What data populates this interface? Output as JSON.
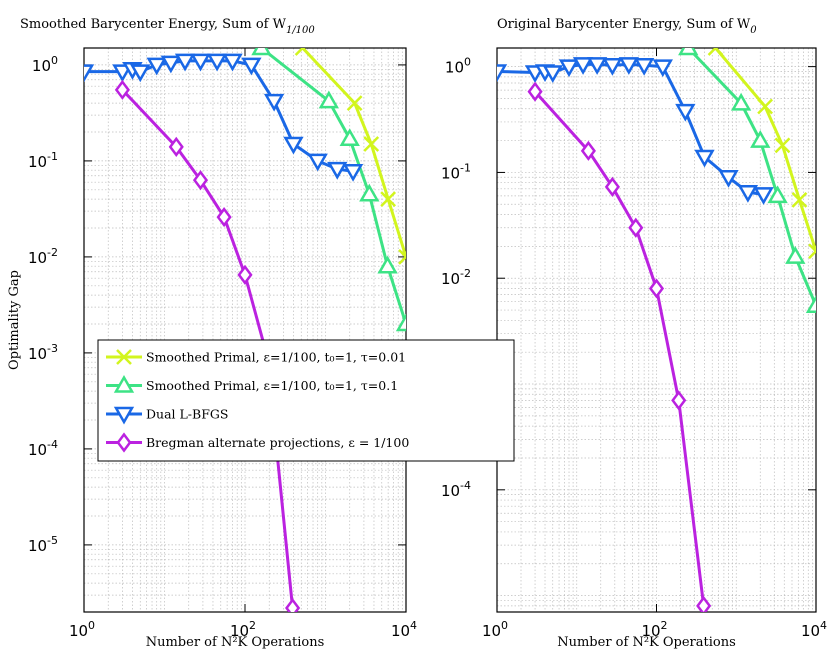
{
  "y_axis_label": "Optimality Gap",
  "chart_data": [
    {
      "type": "line",
      "title": "Smoothed Barycenter Energy, Sum of W",
      "title_subscript": "1/100",
      "xlabel": "Number of N²K Operations",
      "ylabel": "Optimality Gap",
      "xscale": "log",
      "yscale": "log",
      "xlim": [
        1,
        10000
      ],
      "ylim": [
        2e-06,
        1.5
      ],
      "grid": true,
      "legend_position": "lower-left",
      "xticks": [
        {
          "v": 1,
          "m": "10",
          "e": "0"
        },
        {
          "v": 100,
          "m": "10",
          "e": "2"
        },
        {
          "v": 10000,
          "m": "10",
          "e": "4"
        }
      ],
      "yticks": [
        {
          "v": 1,
          "m": "10",
          "e": "0"
        },
        {
          "v": 0.1,
          "m": "10",
          "e": "-1"
        },
        {
          "v": 0.01,
          "m": "10",
          "e": "-2"
        },
        {
          "v": 0.001,
          "m": "10",
          "e": "-3"
        },
        {
          "v": 0.0001,
          "m": "10",
          "e": "-4"
        },
        {
          "v": 1e-05,
          "m": "10",
          "e": "-5"
        }
      ],
      "series": [
        {
          "name": "Smoothed Primal, ε=1/100, t₀=1, τ=0.01",
          "color": "#d2f51e",
          "marker": "x",
          "x": [
            520,
            2300,
            3700,
            6000,
            10000
          ],
          "y": [
            1.5,
            0.4,
            0.15,
            0.04,
            0.01
          ]
        },
        {
          "name": "Smoothed Primal, ε=1/100, t₀=1, τ=0.1",
          "color": "#3de385",
          "marker": "triangle-up",
          "x": [
            160,
            1100,
            2000,
            3500,
            5900,
            10000
          ],
          "y": [
            1.5,
            0.42,
            0.17,
            0.045,
            0.008,
            0.002
          ]
        },
        {
          "name": "Dual L-BFGS",
          "color": "#1a68e6",
          "marker": "triangle-down",
          "x": [
            1,
            3,
            4,
            5,
            8,
            12,
            18,
            28,
            45,
            70,
            120,
            230,
            400,
            800,
            1400,
            2200
          ],
          "y": [
            0.85,
            0.85,
            0.9,
            0.85,
            1.0,
            1.05,
            1.1,
            1.1,
            1.1,
            1.1,
            1.0,
            0.42,
            0.15,
            0.1,
            0.082,
            0.078
          ]
        },
        {
          "name": "Bregman alternate projections, ε = 1/100",
          "color": "#bb22e0",
          "marker": "diamond",
          "x": [
            3,
            14,
            28,
            55,
            100,
            190,
            390
          ],
          "y": [
            0.55,
            0.14,
            0.063,
            0.026,
            0.0065,
            0.0009,
            2.2e-06
          ]
        }
      ]
    },
    {
      "type": "line",
      "title": "Original Barycenter Energy, Sum of W",
      "title_subscript": "0",
      "xlabel": "Number of N²K Operations",
      "ylabel": "",
      "xscale": "log",
      "yscale": "log",
      "xlim": [
        1,
        10000
      ],
      "ylim": [
        7e-06,
        1.5
      ],
      "grid": true,
      "xticks": [
        {
          "v": 1,
          "m": "10",
          "e": "0"
        },
        {
          "v": 100,
          "m": "10",
          "e": "2"
        },
        {
          "v": 10000,
          "m": "10",
          "e": "4"
        }
      ],
      "yticks": [
        {
          "v": 1,
          "m": "10",
          "e": "0"
        },
        {
          "v": 0.1,
          "m": "10",
          "e": "-1"
        },
        {
          "v": 0.01,
          "m": "10",
          "e": "-2"
        },
        {
          "v": 0.0001,
          "m": "10",
          "e": "-4"
        }
      ],
      "series": [
        {
          "name": "Smoothed Primal, ε=1/100, t₀=1, τ=0.01",
          "color": "#d2f51e",
          "marker": "x",
          "x": [
            550,
            2300,
            3800,
            6200,
            10000
          ],
          "y": [
            1.5,
            0.42,
            0.18,
            0.055,
            0.018
          ]
        },
        {
          "name": "Smoothed Primal, ε=1/100, t₀=1, τ=0.1",
          "color": "#3de385",
          "marker": "triangle-up",
          "x": [
            250,
            1150,
            2000,
            3300,
            5500,
            10000
          ],
          "y": [
            1.5,
            0.45,
            0.2,
            0.06,
            0.016,
            0.0055
          ]
        },
        {
          "name": "Dual L-BFGS",
          "color": "#1a68e6",
          "marker": "triangle-down",
          "x": [
            1,
            3,
            4,
            5,
            8,
            12,
            18,
            28,
            45,
            70,
            120,
            230,
            400,
            800,
            1400,
            2200
          ],
          "y": [
            0.9,
            0.88,
            0.9,
            0.88,
            1.0,
            1.05,
            1.05,
            1.03,
            1.05,
            1.03,
            1.0,
            0.38,
            0.14,
            0.09,
            0.065,
            0.062
          ]
        },
        {
          "name": "Bregman alternate projections, ε = 1/100",
          "color": "#bb22e0",
          "marker": "diamond",
          "x": [
            3,
            14,
            28,
            55,
            100,
            190,
            390
          ],
          "y": [
            0.58,
            0.16,
            0.073,
            0.03,
            0.008,
            0.0007,
            8e-06
          ]
        }
      ]
    }
  ],
  "legend": {
    "items": [
      {
        "name": "Smoothed Primal, ε=1/100, t₀=1, τ=0.01",
        "color": "#d2f51e",
        "marker": "x"
      },
      {
        "name": "Smoothed Primal, ε=1/100, t₀=1, τ=0.1",
        "color": "#3de385",
        "marker": "triangle-up"
      },
      {
        "name": "Dual L-BFGS",
        "color": "#1a68e6",
        "marker": "triangle-down"
      },
      {
        "name": "Bregman alternate projections, ε = 1/100",
        "color": "#bb22e0",
        "marker": "diamond"
      }
    ]
  }
}
